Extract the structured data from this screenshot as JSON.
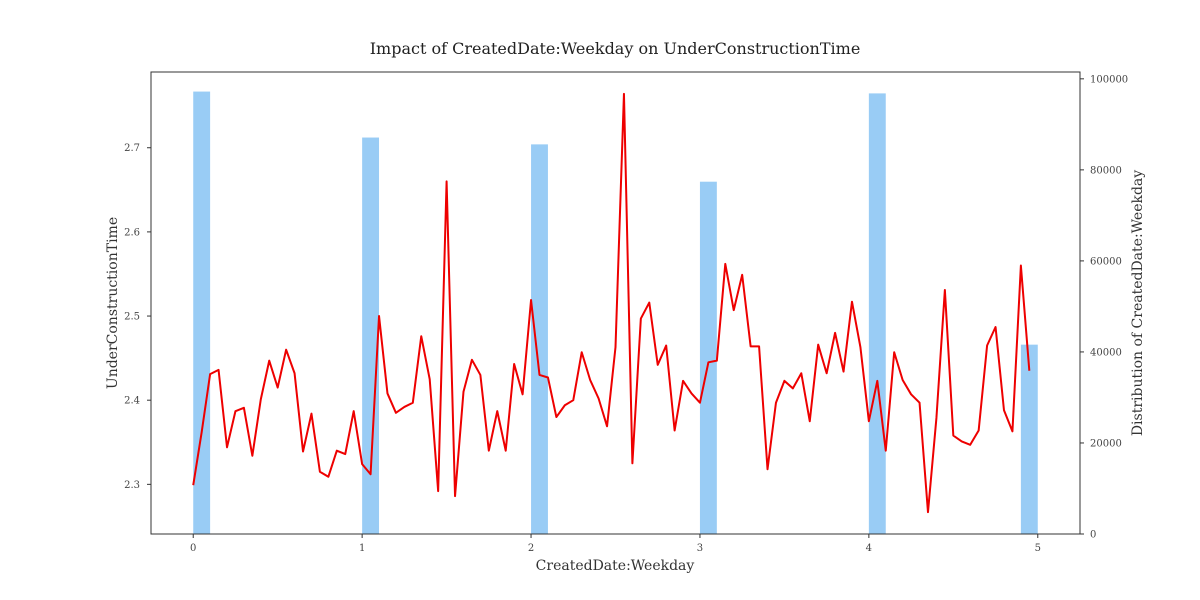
{
  "chart_data": {
    "type": "bar+line",
    "title": "Impact of CreatedDate:Weekday on UnderConstructionTime",
    "xlabel": "CreatedDate:Weekday",
    "ylabel_left": "UnderConstructionTime",
    "ylabel_right": "Distribution of CreatedDate:Weekday",
    "xlim": [
      -0.25,
      5.25
    ],
    "ylim_left": [
      2.241,
      2.79
    ],
    "ylim_right": [
      0,
      101500
    ],
    "x_ticks": [
      0,
      1,
      2,
      3,
      4,
      5
    ],
    "x_tick_labels": [
      "0",
      "1",
      "2",
      "3",
      "4",
      "5"
    ],
    "y_left_ticks": [
      2.3,
      2.4,
      2.5,
      2.6,
      2.7
    ],
    "y_left_tick_labels": [
      "2.3",
      "2.4",
      "2.5",
      "2.6",
      "2.7"
    ],
    "y_right_ticks": [
      0,
      20000,
      40000,
      60000,
      80000,
      100000
    ],
    "y_right_tick_labels": [
      "0",
      "20000",
      "40000",
      "60000",
      "80000",
      "100000"
    ],
    "bar_color": "#99CCF5",
    "line_color": "#EE0000",
    "bars": {
      "x": [
        0.05,
        1.05,
        2.05,
        3.05,
        4.05,
        4.95
      ],
      "width": 0.1,
      "values": [
        97200,
        87100,
        85600,
        77400,
        96800,
        41600
      ]
    },
    "line": {
      "x_start": 0,
      "x_step": 0.05,
      "values": [
        2.299,
        2.362,
        2.431,
        2.436,
        2.344,
        2.387,
        2.391,
        2.334,
        2.401,
        2.447,
        2.415,
        2.46,
        2.432,
        2.339,
        2.384,
        2.315,
        2.309,
        2.34,
        2.336,
        2.387,
        2.324,
        2.312,
        2.5,
        2.408,
        2.385,
        2.392,
        2.397,
        2.476,
        2.425,
        2.292,
        2.66,
        2.286,
        2.41,
        2.448,
        2.43,
        2.34,
        2.387,
        2.34,
        2.443,
        2.407,
        2.519,
        2.43,
        2.427,
        2.38,
        2.394,
        2.4,
        2.457,
        2.424,
        2.402,
        2.369,
        2.463,
        2.764,
        2.325,
        2.497,
        2.516,
        2.442,
        2.465,
        2.364,
        2.423,
        2.408,
        2.397,
        2.445,
        2.447,
        2.562,
        2.507,
        2.549,
        2.464,
        2.464,
        2.318,
        2.397,
        2.423,
        2.414,
        2.432,
        2.375,
        2.466,
        2.432,
        2.48,
        2.434,
        2.517,
        2.463,
        2.375,
        2.423,
        2.34,
        2.457,
        2.424,
        2.407,
        2.397,
        2.267,
        2.379,
        2.531,
        2.358,
        2.351,
        2.347,
        2.364,
        2.465,
        2.487,
        2.388,
        2.363,
        2.56,
        2.435
      ]
    }
  }
}
